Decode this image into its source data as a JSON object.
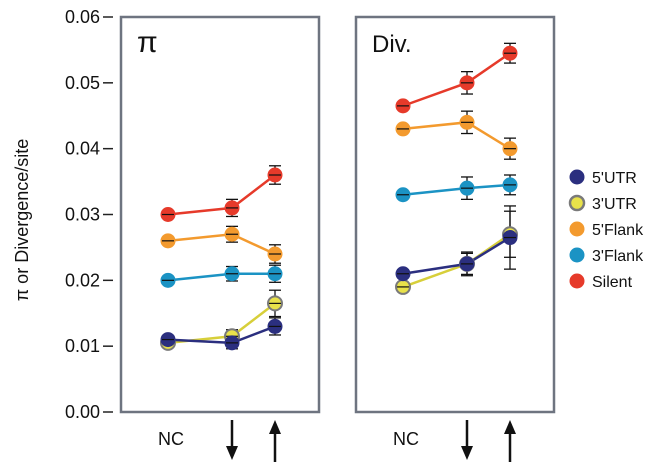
{
  "chart_data": {
    "type": "line",
    "ylabel": "π or Divergence/site",
    "ylim": [
      0.0,
      0.06
    ],
    "y_ticks": [
      "0.00",
      "0.01",
      "0.02",
      "0.03",
      "0.04",
      "0.05",
      "0.06"
    ],
    "y_tick_values": [
      0.0,
      0.01,
      0.02,
      0.03,
      0.04,
      0.05,
      0.06
    ],
    "categories": [
      "NC",
      "down-arrow-icon",
      "up-arrow-icon"
    ],
    "category_labels": [
      "NC",
      "↓",
      "↑"
    ],
    "legend_placement": "right",
    "grid": false,
    "panels": [
      {
        "title": "π",
        "series": [
          {
            "name": "Silent",
            "values": [
              0.03,
              0.031,
              0.036
            ],
            "errors": [
              0.0005,
              0.0013,
              0.0014
            ]
          },
          {
            "name": "5'Flank",
            "values": [
              0.026,
              0.027,
              0.024
            ],
            "errors": [
              0.0005,
              0.0012,
              0.0014
            ]
          },
          {
            "name": "3'Flank",
            "values": [
              0.02,
              0.021,
              0.021
            ],
            "errors": [
              0.0004,
              0.0011,
              0.0013
            ]
          },
          {
            "name": "3'UTR",
            "values": [
              0.0105,
              0.0115,
              0.0165
            ],
            "errors": [
              0.0005,
              0.001,
              0.002
            ]
          },
          {
            "name": "5'UTR",
            "values": [
              0.011,
              0.0105,
              0.013
            ],
            "errors": [
              0.0005,
              0.0009,
              0.0013
            ]
          }
        ]
      },
      {
        "title": "Div.",
        "series": [
          {
            "name": "Silent",
            "values": [
              0.0465,
              0.05,
              0.0545
            ],
            "errors": [
              0.0005,
              0.0017,
              0.0015
            ]
          },
          {
            "name": "5'Flank",
            "values": [
              0.043,
              0.044,
              0.04
            ],
            "errors": [
              0.0005,
              0.0017,
              0.0016
            ]
          },
          {
            "name": "3'Flank",
            "values": [
              0.033,
              0.034,
              0.0345
            ],
            "errors": [
              0.0004,
              0.0017,
              0.0015
            ]
          },
          {
            "name": "3'UTR",
            "values": [
              0.019,
              0.0225,
              0.027
            ],
            "errors": [
              0.0005,
              0.0016,
              0.0035
            ]
          },
          {
            "name": "5'UTR",
            "values": [
              0.021,
              0.0225,
              0.0265
            ],
            "errors": [
              0.0006,
              0.0018,
              0.0048
            ]
          }
        ]
      }
    ],
    "legend": [
      {
        "name": "5'UTR",
        "fill": "#2b2f7f",
        "stroke": "#2b2f7f"
      },
      {
        "name": "3'UTR",
        "fill": "#e9e24a",
        "stroke": "#7a7a7a"
      },
      {
        "name": "5'Flank",
        "fill": "#f39a2e",
        "stroke": "#f39a2e"
      },
      {
        "name": "3'Flank",
        "fill": "#1b93c4",
        "stroke": "#1b93c4"
      },
      {
        "name": "Silent",
        "fill": "#e63a2a",
        "stroke": "#e63a2a"
      }
    ],
    "line_colors": {
      "Silent": "#e63a2a",
      "5'Flank": "#f39a2e",
      "3'Flank": "#1b93c4",
      "3'UTR": "#d7cf3a",
      "5'UTR": "#2b2f7f"
    }
  }
}
